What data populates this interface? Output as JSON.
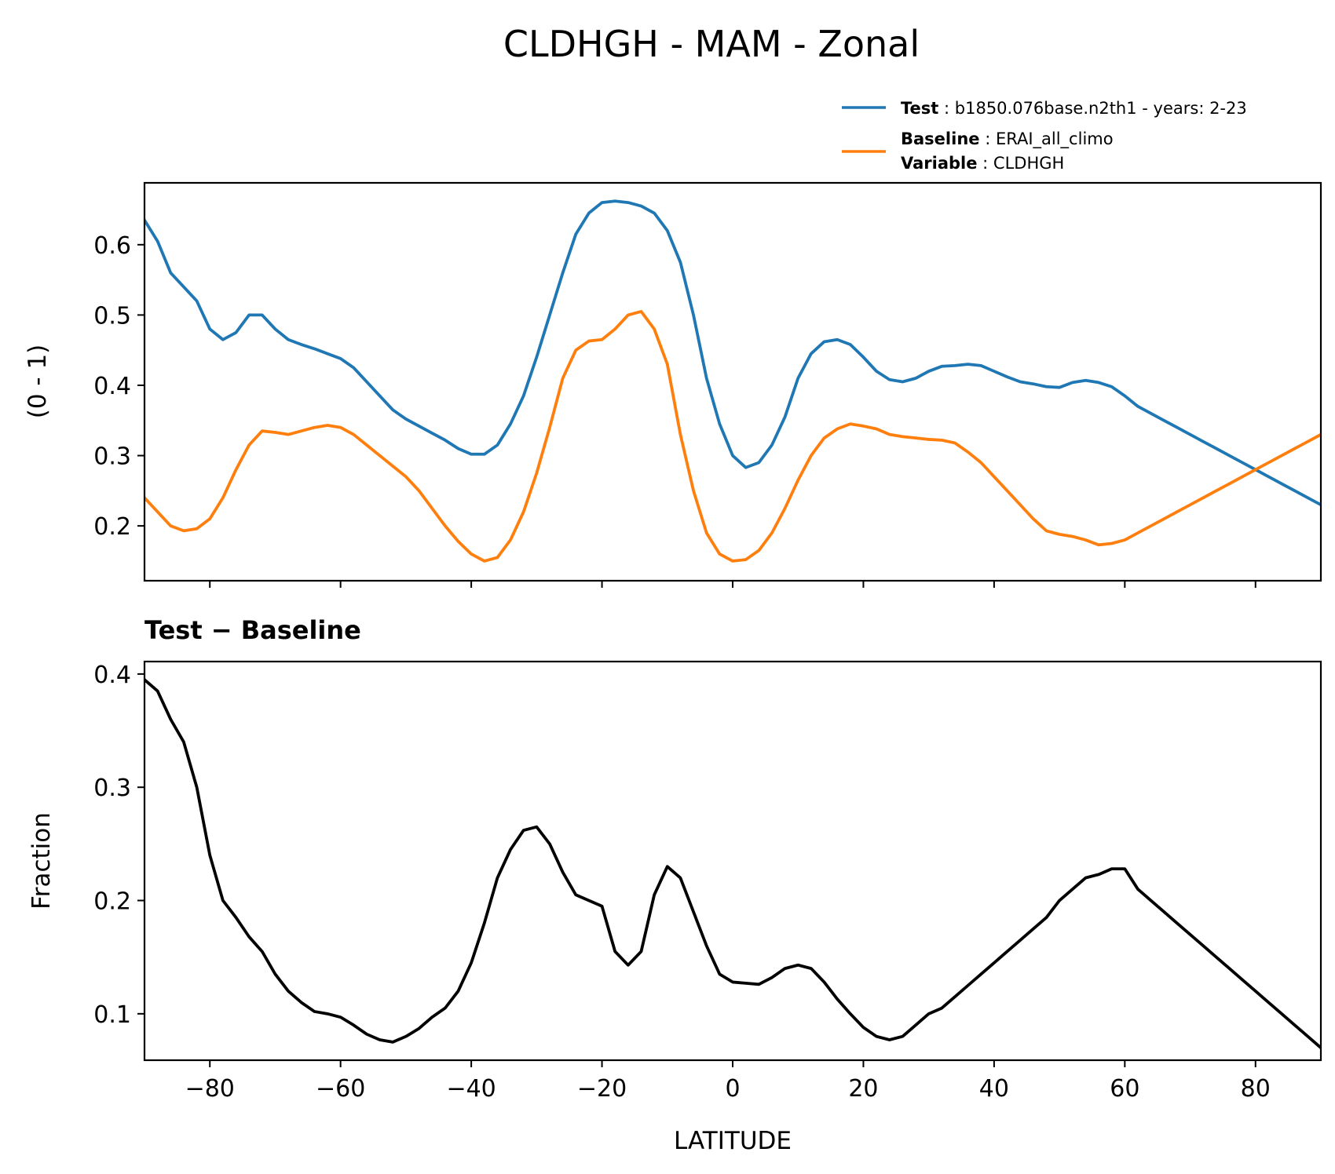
{
  "figure": {
    "title": "CLDHGH - MAM - Zonal"
  },
  "legend": {
    "test": {
      "key": "Test",
      "sep": " : ",
      "text": "b1850.076base.n2th1 - years: 2-23",
      "color": "#1f77b4"
    },
    "baseline": {
      "key": "Baseline",
      "sep": " : ",
      "text": "ERAI_all_climo",
      "color": "#ff7f0e"
    },
    "variable": {
      "key": "Variable",
      "sep": " : ",
      "text": "CLDHGH"
    }
  },
  "chart_data": [
    {
      "type": "line",
      "ylabel": "(0 - 1)",
      "xlabel": "",
      "xlim": [
        -90,
        90
      ],
      "ylim": [
        0.122,
        0.688
      ],
      "xticks": [
        -80,
        -60,
        -40,
        -20,
        0,
        20,
        40,
        60,
        80
      ],
      "yticks": [
        0.2,
        0.3,
        0.4,
        0.5,
        0.6
      ],
      "ytick_labels": [
        "0.2",
        "0.3",
        "0.4",
        "0.5",
        "0.6"
      ],
      "show_xtick_labels": false,
      "grid": false,
      "series": [
        {
          "name": "Test",
          "color": "#1f77b4",
          "x": [
            -90,
            -88,
            -86,
            -84,
            -82,
            -80,
            -78,
            -76,
            -74,
            -72,
            -70,
            -68,
            -66,
            -64,
            -62,
            -60,
            -58,
            -56,
            -54,
            -52,
            -50,
            -48,
            -46,
            -44,
            -42,
            -40,
            -38,
            -36,
            -34,
            -32,
            -30,
            -28,
            -26,
            -24,
            -22,
            -20,
            -18,
            -16,
            -14,
            -12,
            -10,
            -8,
            -6,
            -4,
            -2,
            0,
            2,
            4,
            6,
            8,
            10,
            12,
            14,
            16,
            18,
            20,
            22,
            24,
            26,
            28,
            30,
            32,
            34,
            36,
            38,
            40,
            42,
            44,
            46,
            48,
            50,
            52,
            54,
            56,
            58,
            60,
            62,
            64,
            66,
            68,
            70,
            72,
            74,
            76,
            78,
            80,
            82,
            84,
            86,
            88,
            90
          ],
          "values": [
            0.635,
            0.605,
            0.56,
            0.54,
            0.52,
            0.48,
            0.465,
            0.475,
            0.5,
            0.5,
            0.48,
            0.465,
            0.458,
            0.452,
            0.445,
            0.438,
            0.425,
            0.405,
            0.385,
            0.365,
            0.352,
            0.342,
            0.332,
            0.322,
            0.31,
            0.302,
            0.302,
            0.315,
            0.345,
            0.385,
            0.44,
            0.5,
            0.56,
            0.615,
            0.645,
            0.66,
            0.662,
            0.66,
            0.655,
            0.645,
            0.62,
            0.575,
            0.5,
            0.41,
            0.345,
            0.3,
            0.283,
            0.29,
            0.315,
            0.355,
            0.41,
            0.445,
            0.462,
            0.465,
            0.458,
            0.44,
            0.42,
            0.408,
            0.405,
            0.41,
            0.42,
            0.427,
            0.428,
            0.43,
            0.428,
            0.42,
            0.412,
            0.405,
            0.402,
            0.398,
            0.397,
            0.404,
            0.407,
            0.404,
            0.398,
            0.385,
            0.37,
            0.36,
            0.35,
            0.34,
            0.33,
            0.32,
            0.31,
            0.3,
            0.29,
            0.28,
            0.27,
            0.26,
            0.25,
            0.24,
            0.23
          ],
          "values_note": ""
        },
        {
          "name": "Baseline",
          "color": "#ff7f0e",
          "x": [
            -90,
            -88,
            -86,
            -84,
            -82,
            -80,
            -78,
            -76,
            -74,
            -72,
            -70,
            -68,
            -66,
            -64,
            -62,
            -60,
            -58,
            -56,
            -54,
            -52,
            -50,
            -48,
            -46,
            -44,
            -42,
            -40,
            -38,
            -36,
            -34,
            -32,
            -30,
            -28,
            -26,
            -24,
            -22,
            -20,
            -18,
            -16,
            -14,
            -12,
            -10,
            -8,
            -6,
            -4,
            -2,
            0,
            2,
            4,
            6,
            8,
            10,
            12,
            14,
            16,
            18,
            20,
            22,
            24,
            26,
            28,
            30,
            32,
            34,
            36,
            38,
            40,
            42,
            44,
            46,
            48,
            50,
            52,
            54,
            56,
            58,
            60,
            62,
            64,
            66,
            68,
            70,
            72,
            74,
            76,
            78,
            80,
            82,
            84,
            86,
            88,
            90
          ],
          "values": [
            0.24,
            0.22,
            0.2,
            0.193,
            0.196,
            0.21,
            0.24,
            0.28,
            0.315,
            0.335,
            0.333,
            0.33,
            0.335,
            0.34,
            0.343,
            0.34,
            0.33,
            0.315,
            0.3,
            0.285,
            0.27,
            0.25,
            0.225,
            0.2,
            0.178,
            0.16,
            0.15,
            0.155,
            0.18,
            0.22,
            0.275,
            0.34,
            0.41,
            0.45,
            0.463,
            0.465,
            0.48,
            0.5,
            0.505,
            0.48,
            0.43,
            0.33,
            0.25,
            0.19,
            0.16,
            0.15,
            0.152,
            0.165,
            0.19,
            0.225,
            0.265,
            0.3,
            0.325,
            0.338,
            0.345,
            0.342,
            0.338,
            0.33,
            0.327,
            0.325,
            0.323,
            0.322,
            0.318,
            0.305,
            0.29,
            0.27,
            0.25,
            0.23,
            0.21,
            0.193,
            0.188,
            0.185,
            0.18,
            0.173,
            0.175,
            0.18,
            0.19,
            0.2,
            0.21,
            0.22,
            0.23,
            0.24,
            0.25,
            0.26,
            0.27,
            0.28,
            0.29,
            0.3,
            0.31,
            0.32,
            0.33
          ],
          "values_note": ""
        }
      ]
    },
    {
      "type": "line",
      "title": "Test − Baseline",
      "ylabel": "Fraction",
      "xlabel": "LATITUDE",
      "xlim": [
        -90,
        90
      ],
      "ylim": [
        0.059,
        0.411
      ],
      "xticks": [
        -80,
        -60,
        -40,
        -20,
        0,
        20,
        40,
        60,
        80
      ],
      "xtick_labels": [
        "−80",
        "−60",
        "−40",
        "−20",
        "0",
        "20",
        "40",
        "60",
        "80"
      ],
      "yticks": [
        0.1,
        0.2,
        0.3,
        0.4
      ],
      "ytick_labels": [
        "0.1",
        "0.2",
        "0.3",
        "0.4"
      ],
      "grid": false,
      "series": [
        {
          "color": "#000000",
          "x": [
            -90,
            -88,
            -86,
            -84,
            -82,
            -80,
            -78,
            -76,
            -74,
            -72,
            -70,
            -68,
            -66,
            -64,
            -62,
            -60,
            -58,
            -56,
            -54,
            -52,
            -50,
            -48,
            -46,
            -44,
            -42,
            -40,
            -38,
            -36,
            -34,
            -32,
            -30,
            -28,
            -26,
            -24,
            -22,
            -20,
            -18,
            -16,
            -14,
            -12,
            -10,
            -8,
            -6,
            -4,
            -2,
            0,
            2,
            4,
            6,
            8,
            10,
            12,
            14,
            16,
            18,
            20,
            22,
            24,
            26,
            28,
            30,
            32,
            34,
            36,
            38,
            40,
            42,
            44,
            46,
            48,
            50,
            52,
            54,
            56,
            58,
            60,
            62,
            64,
            66,
            68,
            70,
            72,
            74,
            76,
            78,
            80,
            82,
            84,
            86,
            88,
            90
          ],
          "values": [
            0.395,
            0.385,
            0.36,
            0.34,
            0.3,
            0.24,
            0.2,
            0.185,
            0.168,
            0.155,
            0.135,
            0.12,
            0.11,
            0.102,
            0.1,
            0.097,
            0.09,
            0.082,
            0.077,
            0.075,
            0.08,
            0.087,
            0.097,
            0.105,
            0.12,
            0.145,
            0.18,
            0.22,
            0.245,
            0.262,
            0.265,
            0.25,
            0.225,
            0.205,
            0.2,
            0.195,
            0.155,
            0.143,
            0.155,
            0.205,
            0.23,
            0.22,
            0.19,
            0.16,
            0.135,
            0.128,
            0.127,
            0.126,
            0.132,
            0.14,
            0.143,
            0.14,
            0.128,
            0.113,
            0.1,
            0.088,
            0.08,
            0.077,
            0.08,
            0.09,
            0.1,
            0.105,
            0.115,
            0.125,
            0.135,
            0.145,
            0.155,
            0.165,
            0.175,
            0.185,
            0.2,
            0.21,
            0.22,
            0.223,
            0.228,
            0.228,
            0.21,
            0.2,
            0.19,
            0.18,
            0.17,
            0.16,
            0.15,
            0.14,
            0.13,
            0.12,
            0.11,
            0.1,
            0.09,
            0.08,
            0.07
          ]
        }
      ]
    }
  ]
}
